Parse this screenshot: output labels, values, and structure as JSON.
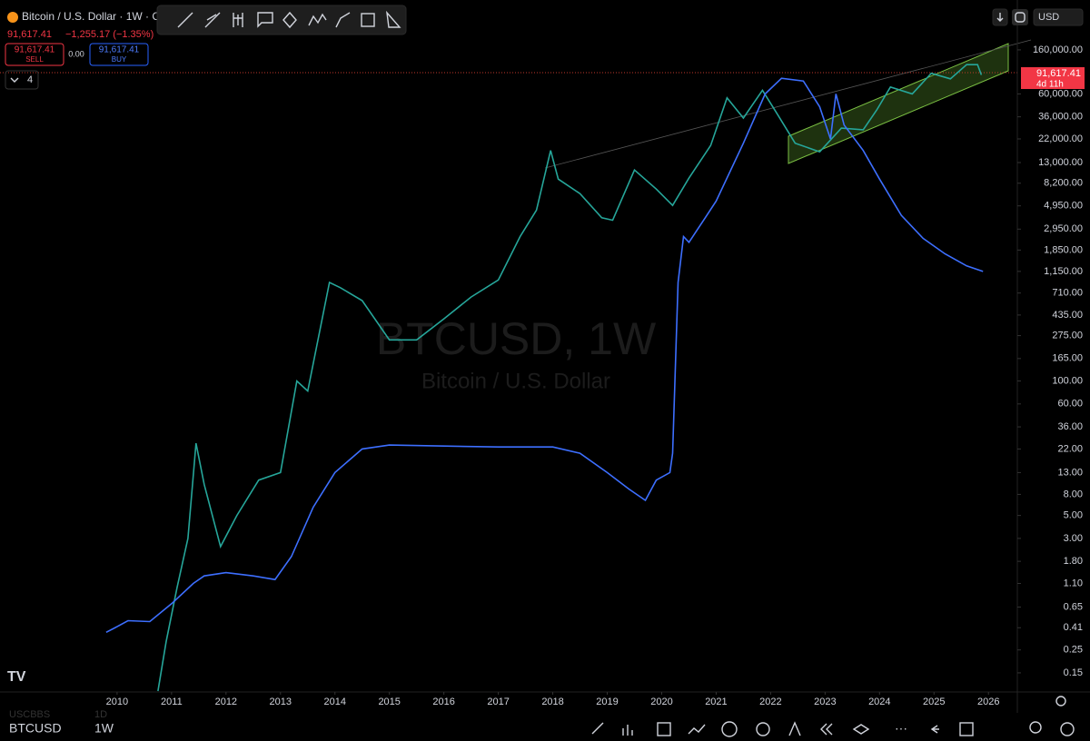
{
  "header": {
    "symbol_title": "Bitcoin / U.S. Dollar · 1W · C",
    "price": "91,617.41",
    "change": "−1,255.17 (−1.35%)",
    "currency": "USD"
  },
  "order": {
    "sell_price": "91,617.41",
    "sell": "SELL",
    "spread": "0.00",
    "buy_price": "91,617.41",
    "buy": "BUY",
    "indicators": "4"
  },
  "watermark": {
    "title": "BTCUSD, 1W",
    "subtitle": "Bitcoin / U.S. Dollar"
  },
  "price_tag": {
    "price": "91,617.41",
    "countdown": "4d 11h"
  },
  "footer": {
    "symbol": "BTCUSD",
    "interval": "1W",
    "faded_symbol": "USCBBS",
    "faded_interval": "1D"
  },
  "chart_data": {
    "type": "line",
    "log_scale": true,
    "grid": false,
    "xlim": [
      2007.85,
      2026.53
    ],
    "xticks": [
      2010,
      2011,
      2012,
      2013,
      2014,
      2015,
      2016,
      2017,
      2018,
      2019,
      2020,
      2021,
      2022,
      2023,
      2024,
      2025,
      2026
    ],
    "ylim": [
      0.098,
      486000
    ],
    "yticks": [
      {
        "value": 160000,
        "label": "160,000.00"
      },
      {
        "value": 60000,
        "label": "60,000.00"
      },
      {
        "value": 36000,
        "label": "36,000.00"
      },
      {
        "value": 22000,
        "label": "22,000.00"
      },
      {
        "value": 13000,
        "label": "13,000.00"
      },
      {
        "value": 8200,
        "label": "8,200.00"
      },
      {
        "value": 4950,
        "label": "4,950.00"
      },
      {
        "value": 2950,
        "label": "2,950.00"
      },
      {
        "value": 1850,
        "label": "1,850.00"
      },
      {
        "value": 1150,
        "label": "1,150.00"
      },
      {
        "value": 710,
        "label": "710.00"
      },
      {
        "value": 435,
        "label": "435.00"
      },
      {
        "value": 275,
        "label": "275.00"
      },
      {
        "value": 165,
        "label": "165.00"
      },
      {
        "value": 100,
        "label": "100.00"
      },
      {
        "value": 60,
        "label": "60.00"
      },
      {
        "value": 36,
        "label": "36.00"
      },
      {
        "value": 22,
        "label": "22.00"
      },
      {
        "value": 13,
        "label": "13.00"
      },
      {
        "value": 8,
        "label": "8.00"
      },
      {
        "value": 5,
        "label": "5.00"
      },
      {
        "value": 3,
        "label": "3.00"
      },
      {
        "value": 1.8,
        "label": "1.80"
      },
      {
        "value": 1.1,
        "label": "1.10"
      },
      {
        "value": 0.65,
        "label": "0.65"
      },
      {
        "value": 0.41,
        "label": "0.41"
      },
      {
        "value": 0.25,
        "label": "0.25"
      },
      {
        "value": 0.15,
        "label": "0.15"
      }
    ],
    "series": [
      {
        "color": "#26a69a",
        "x": [
          2010.75,
          2010.9,
          2011.1,
          2011.3,
          2011.45,
          2011.6,
          2011.9,
          2012.2,
          2012.6,
          2013.0,
          2013.3,
          2013.5,
          2013.9,
          2014.1,
          2014.5,
          2015.0,
          2015.5,
          2016.0,
          2016.5,
          2017.0,
          2017.4,
          2017.7,
          2017.96,
          2018.1,
          2018.5,
          2018.9,
          2019.1,
          2019.5,
          2019.9,
          2020.2,
          2020.5,
          2020.9,
          2021.2,
          2021.5,
          2021.85,
          2022.1,
          2022.45,
          2022.9,
          2023.3,
          2023.7,
          2023.95,
          2024.2,
          2024.6,
          2024.95,
          2025.3,
          2025.6,
          2025.8,
          2025.87
        ],
        "values": [
          0.1,
          0.3,
          1,
          3,
          25,
          10,
          2.5,
          5,
          11,
          13,
          100,
          80,
          900,
          800,
          600,
          250,
          250,
          400,
          650,
          950,
          2500,
          4500,
          17000,
          9000,
          6500,
          3800,
          3600,
          11000,
          7200,
          5000,
          9200,
          19000,
          55000,
          35000,
          65000,
          40000,
          20000,
          16500,
          28000,
          27000,
          42000,
          70000,
          60000,
          95000,
          84000,
          115000,
          115000,
          91617.41
        ]
      },
      {
        "color": "#3d6fff",
        "x": [
          2009.8,
          2010.0,
          2010.2,
          2010.6,
          2011.0,
          2011.4,
          2011.6,
          2012.0,
          2012.5,
          2012.9,
          2013.2,
          2013.6,
          2014.0,
          2014.5,
          2015.0,
          2016.0,
          2017.0,
          2018.0,
          2018.5,
          2019.0,
          2019.4,
          2019.7,
          2019.9,
          2020.15,
          2020.2,
          2020.3,
          2020.4,
          2020.5,
          2020.8,
          2021.0,
          2021.5,
          2021.9,
          2022.2,
          2022.6,
          2022.9,
          2023.1,
          2023.2,
          2023.35,
          2023.7,
          2024.0,
          2024.4,
          2024.8,
          2025.2,
          2025.6,
          2025.9
        ],
        "values": [
          0.37,
          0.42,
          0.48,
          0.47,
          0.7,
          1.1,
          1.3,
          1.4,
          1.3,
          1.2,
          2,
          6,
          13,
          22,
          24,
          23.5,
          23,
          23,
          20,
          13,
          9,
          7,
          11,
          13,
          20,
          900,
          2500,
          2200,
          3800,
          5500,
          20000,
          60000,
          85000,
          80000,
          45000,
          22000,
          60000,
          30000,
          17000,
          9000,
          4000,
          2400,
          1700,
          1300,
          1150
        ]
      }
    ]
  }
}
